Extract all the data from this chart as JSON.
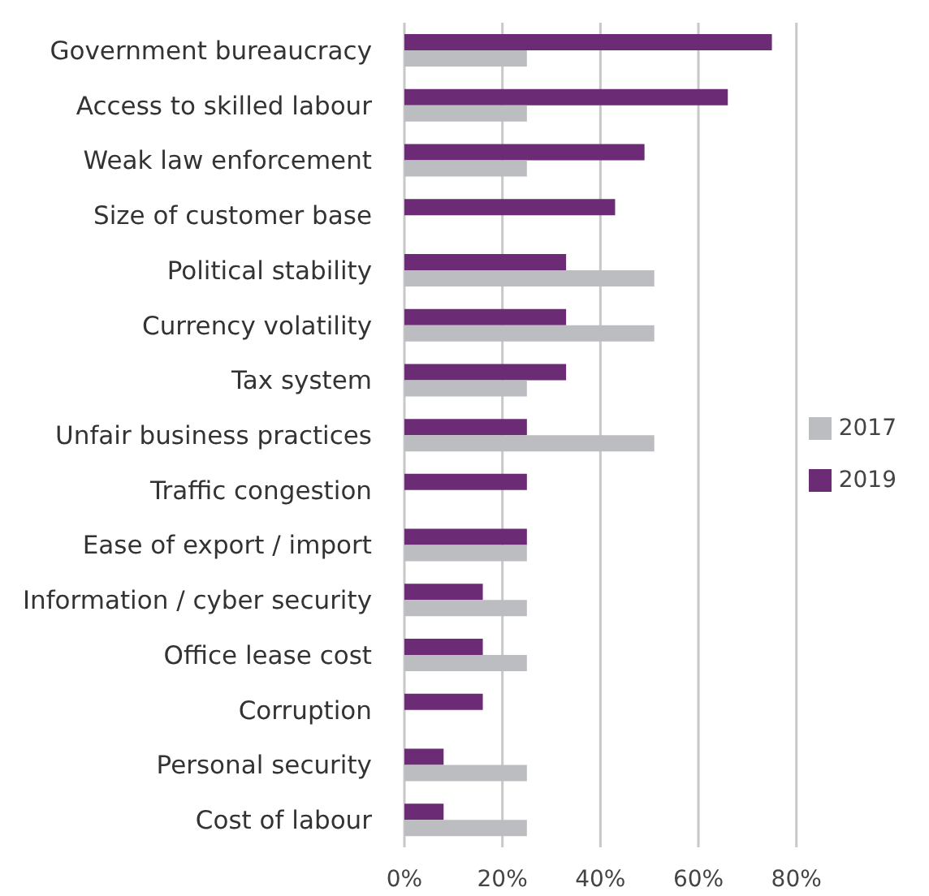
{
  "chart_data": {
    "type": "bar",
    "orientation": "horizontal",
    "categories": [
      "Government bureaucracy",
      "Access to skilled labour",
      "Weak law enforcement",
      "Size of customer base",
      "Political stability",
      "Currency volatility",
      "Tax system",
      "Unfair business practices",
      "Traffic congestion",
      "Ease of export / import",
      "Information / cyber security",
      "Office lease cost",
      "Corruption",
      "Personal security",
      "Cost of labour"
    ],
    "series": [
      {
        "name": "2019",
        "color": "#6b2c75",
        "values": [
          75,
          66,
          49,
          43,
          33,
          33,
          33,
          25,
          25,
          25,
          16,
          16,
          16,
          8,
          8
        ]
      },
      {
        "name": "2017",
        "color": "#bcbdc0",
        "values": [
          25,
          25,
          25,
          null,
          51,
          51,
          25,
          51,
          null,
          25,
          25,
          25,
          null,
          25,
          25
        ]
      }
    ],
    "xlim": [
      0,
      80
    ],
    "xticks": [
      {
        "value": 0,
        "label": "0%"
      },
      {
        "value": 20,
        "label": "20%"
      },
      {
        "value": 40,
        "label": "40%"
      },
      {
        "value": 60,
        "label": "60%"
      },
      {
        "value": 80,
        "label": "80%"
      }
    ],
    "grid": "x",
    "legend": "right"
  }
}
